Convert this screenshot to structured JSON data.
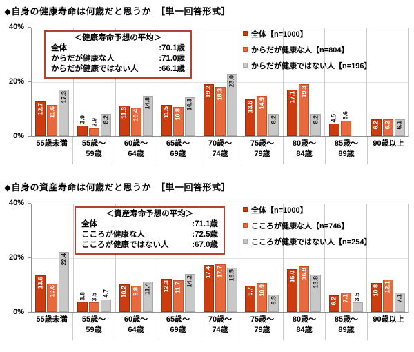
{
  "colors": {
    "series": [
      {
        "name": "total",
        "fill": "#cc3c0e",
        "border": "#a02e06"
      },
      {
        "name": "healthy",
        "fill": "#e8693e",
        "border": "#c4502a"
      },
      {
        "name": "not-healthy",
        "fill": "#c8c8c8",
        "border": "#a8a8a8"
      }
    ],
    "avg_box_border": "#b5412e",
    "axis": "#8f8f8f",
    "divider": "#cccccc"
  },
  "charts": [
    {
      "title": "◆自身の健康寿命は何歳だと思うか　［単一回答形式］",
      "avg_box": {
        "title": "＜健康寿命予想の平均＞",
        "rows": [
          {
            "label": "全体",
            "value": ":70.1歳"
          },
          {
            "label": "からだが健康な人",
            "value": ":71.0歳"
          },
          {
            "label": "からだが健康ではない人",
            "value": ":66.1歳"
          }
        ]
      },
      "legend": [
        {
          "label": "全体【n=1000】"
        },
        {
          "label": "からだが健康な人【n=804】"
        },
        {
          "label": "からだが健康ではない人【n=196】"
        }
      ],
      "y_ticks": [
        "40%",
        "20%",
        "0%"
      ],
      "chart_data": {
        "type": "bar",
        "unit": "%",
        "ylim": [
          0,
          40
        ],
        "grid": "20pct-line",
        "legend_position": "inside-top-right",
        "categories": [
          [
            "55歳未満"
          ],
          [
            "55歳～",
            "59歳"
          ],
          [
            "60歳～",
            "64歳"
          ],
          [
            "65歳～",
            "69歳"
          ],
          [
            "70歳～",
            "74歳"
          ],
          [
            "75歳～",
            "79歳"
          ],
          [
            "80歳～",
            "84歳"
          ],
          [
            "85歳～",
            "89歳"
          ],
          [
            "90歳以上"
          ]
        ],
        "series": [
          {
            "name": "全体【n=1000】",
            "values": [
              12.7,
              3.9,
              11.3,
              11.5,
              19.2,
              13.6,
              17.1,
              4.5,
              6.2
            ]
          },
          {
            "name": "からだが健康な人【n=804】",
            "values": [
              11.6,
              2.9,
              10.4,
              10.8,
              18.3,
              14.9,
              19.3,
              5.6,
              6.2
            ]
          },
          {
            "name": "からだが健康ではない人【n=196】",
            "values": [
              17.3,
              8.2,
              14.8,
              14.3,
              23.0,
              8.2,
              8.2,
              null,
              6.1
            ]
          }
        ]
      }
    },
    {
      "title": "◆自身の資産寿命は何歳だと思うか　［単一回答形式］",
      "avg_box": {
        "title": "＜資産寿命予想の平均＞",
        "rows": [
          {
            "label": "全体",
            "value": ":71.1歳"
          },
          {
            "label": "こころが健康な人",
            "value": ":72.5歳"
          },
          {
            "label": "こころが健康ではない人",
            "value": ":67.0歳"
          }
        ]
      },
      "legend": [
        {
          "label": "全体【n=1000】"
        },
        {
          "label": "こころが健康な人【n=746】"
        },
        {
          "label": "こころが健康ではない人【n=254】"
        }
      ],
      "y_ticks": [
        "40%",
        "20%",
        "0%"
      ],
      "chart_data": {
        "type": "bar",
        "unit": "%",
        "ylim": [
          0,
          40
        ],
        "grid": "20pct-line",
        "legend_position": "inside-top-right",
        "categories": [
          [
            "55歳未満"
          ],
          [
            "55歳～",
            "59歳"
          ],
          [
            "60歳～",
            "64歳"
          ],
          [
            "65歳～",
            "69歳"
          ],
          [
            "70歳～",
            "74歳"
          ],
          [
            "75歳～",
            "79歳"
          ],
          [
            "80歳～",
            "84歳"
          ],
          [
            "85歳～",
            "89歳"
          ],
          [
            "90歳以上"
          ]
        ],
        "series": [
          {
            "name": "全体【n=1000】",
            "values": [
              13.6,
              3.8,
              10.2,
              12.3,
              17.4,
              9.7,
              16.0,
              6.2,
              10.8
            ]
          },
          {
            "name": "こころが健康な人【n=746】",
            "values": [
              10.6,
              3.5,
              9.8,
              11.7,
              17.7,
              10.9,
              16.8,
              7.1,
              12.1
            ]
          },
          {
            "name": "こころが健康ではない人【n=254】",
            "values": [
              22.4,
              4.7,
              11.4,
              14.2,
              16.5,
              6.3,
              13.8,
              3.5,
              7.1
            ]
          }
        ]
      }
    }
  ]
}
